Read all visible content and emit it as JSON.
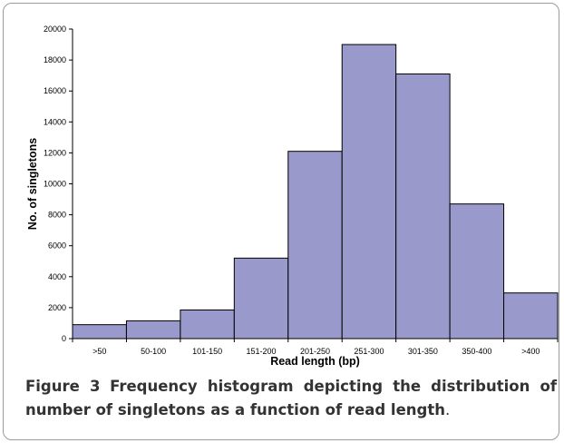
{
  "chart_data": {
    "type": "bar",
    "categories": [
      ">50",
      "50-100",
      "101-150",
      "151-200",
      "201-250",
      "251-300",
      "301-350",
      "350-400",
      ">400"
    ],
    "values": [
      900,
      1150,
      1850,
      5200,
      12100,
      19000,
      17100,
      8700,
      2950
    ],
    "xlabel": "Read length (bp)",
    "ylabel": "No. of singletons",
    "ylim": [
      0,
      20000
    ],
    "yticks": [
      0,
      2000,
      4000,
      6000,
      8000,
      10000,
      12000,
      14000,
      16000,
      18000,
      20000
    ],
    "grid": false,
    "legend": "none",
    "bar_color": "#9999cc",
    "bar_edge_color": "#000000"
  },
  "caption": {
    "label": "Figure 3",
    "text": "Frequency histogram depicting the distribution of number of singletons as a function of read length",
    "end": "."
  }
}
